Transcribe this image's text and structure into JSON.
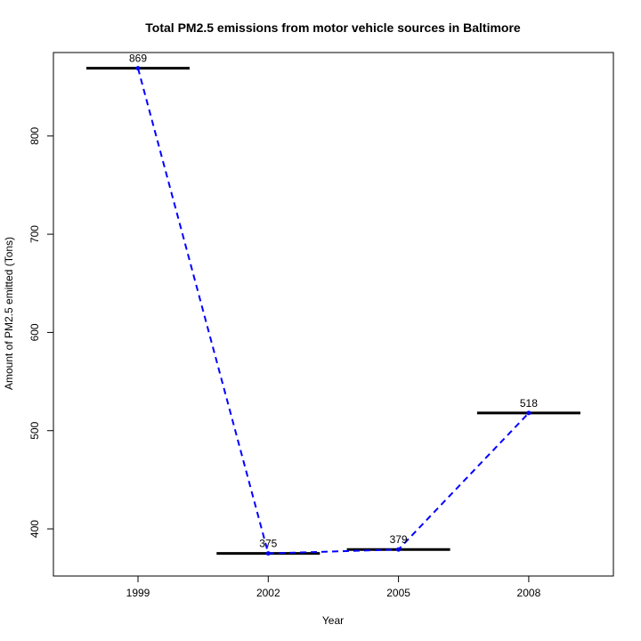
{
  "chart_data": {
    "type": "line",
    "title": "Total PM2.5 emissions from motor vehicle sources in Baltimore",
    "xlabel": "Year",
    "ylabel": "Amount of PM2.5 emitted (Tons)",
    "categories": [
      "1999",
      "2002",
      "2005",
      "2008"
    ],
    "values": [
      869,
      375,
      379,
      518
    ],
    "data_labels": [
      "869",
      "375",
      "379",
      "518"
    ],
    "yticks": [
      400,
      500,
      600,
      700,
      800
    ],
    "ylim": [
      352,
      885
    ],
    "grid": false,
    "colors": {
      "line": "#0000ff",
      "points": "#0000ff",
      "level_bars": "#000000"
    }
  }
}
